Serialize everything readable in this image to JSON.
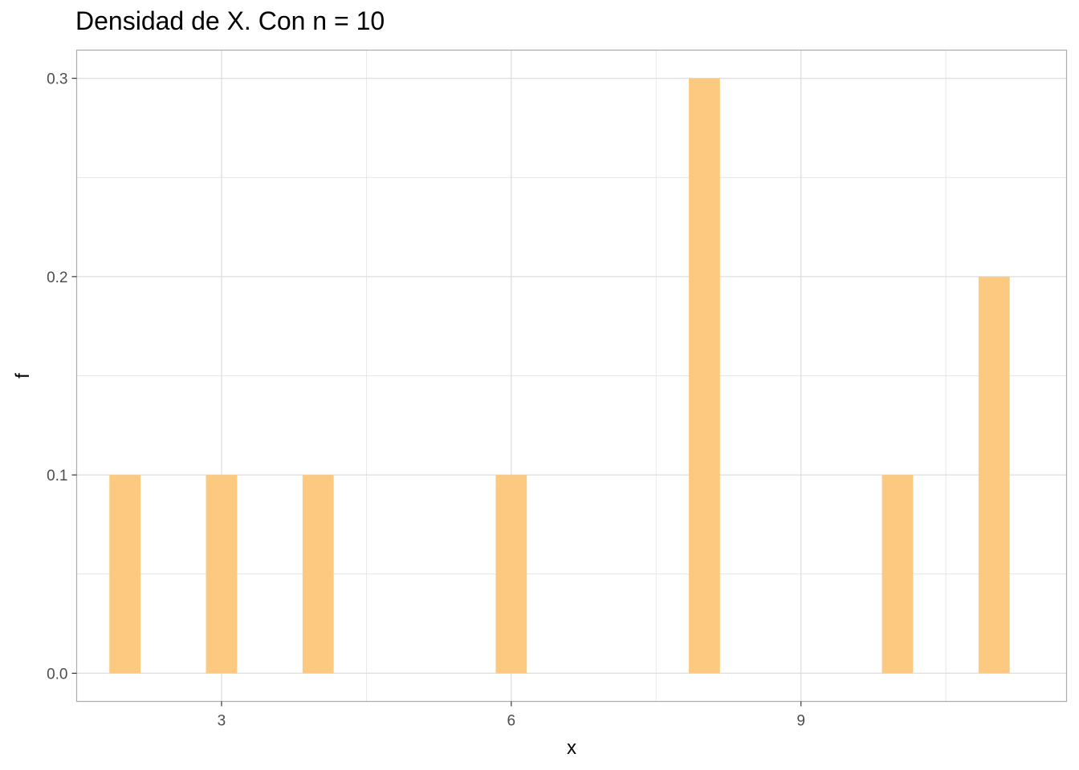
{
  "chart_data": {
    "type": "bar",
    "title": "Densidad de X. Con n = 10",
    "xlabel": "x",
    "ylabel": "f",
    "x": [
      2,
      3,
      4,
      6,
      8,
      10,
      11
    ],
    "values": [
      0.1,
      0.1,
      0.1,
      0.1,
      0.3,
      0.1,
      0.2
    ],
    "xlim": [
      1.5,
      11.75
    ],
    "ylim": [
      -0.0142,
      0.3142
    ],
    "x_ticks": [
      3,
      6,
      9
    ],
    "x_tick_labels": [
      "3",
      "6",
      "9"
    ],
    "x_minor_ticks": [
      1.5,
      4.5,
      7.5,
      10.5
    ],
    "y_ticks": [
      0.0,
      0.1,
      0.2,
      0.3
    ],
    "y_tick_labels": [
      "0.0",
      "0.1",
      "0.2",
      "0.3"
    ],
    "y_minor_ticks": [
      0.05,
      0.15,
      0.25
    ],
    "grid": true,
    "bar_color": "#FBC97F",
    "grid_color": "#DEDEDE",
    "panel_border_color": "#ABABAB",
    "tick_label_color": "#4D4D4D"
  }
}
